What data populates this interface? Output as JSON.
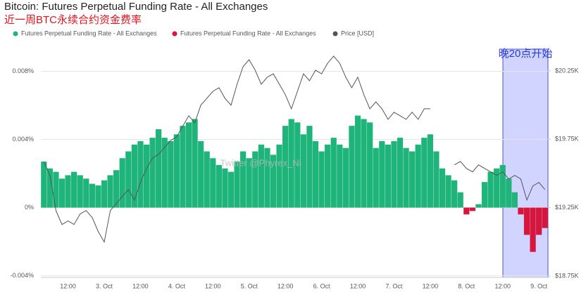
{
  "chart_data": {
    "type": "bar",
    "title": "Bitcoin: Futures Perpetual Funding Rate - All Exchanges",
    "subtitle": "近一周BTC永续合约资金费率",
    "annotation": "晚20点开始",
    "watermark": "Twitter @Phyrex_Ni",
    "categories": [
      null,
      null,
      null,
      null,
      "12:00",
      null,
      null,
      null,
      null,
      null,
      "3. Oct",
      null,
      null,
      null,
      null,
      null,
      "12:00",
      null,
      null,
      null,
      null,
      null,
      "4. Oct",
      null,
      null,
      null,
      null,
      null,
      "12:00",
      null,
      null,
      null,
      null,
      null,
      "5. Oct",
      null,
      null,
      null,
      null,
      null,
      "12:00",
      null,
      null,
      null,
      null,
      null,
      "6. Oct",
      null,
      null,
      null,
      null,
      null,
      "12:00",
      null,
      null,
      null,
      null,
      null,
      "7. Oct",
      null,
      null,
      null,
      null,
      null,
      "12:00",
      null,
      null,
      null,
      null,
      null,
      "8. Oct",
      null,
      null,
      null,
      null,
      null,
      "12:00",
      null,
      null,
      null,
      null,
      null,
      "9. Oct",
      null
    ],
    "series": [
      {
        "name": "Futures Perpetual Funding Rate - All Exchanges",
        "color": "#1fb57a",
        "values": [
          0.0027,
          0.0023,
          0.0021,
          0.0017,
          0.0019,
          0.0021,
          0.0019,
          0.0017,
          0.0014,
          0.0013,
          0.0016,
          0.0019,
          0.0022,
          0.0029,
          0.0033,
          0.0037,
          0.0039,
          0.0037,
          0.0041,
          0.0046,
          0.0041,
          0.0039,
          0.0043,
          0.0048,
          0.005,
          0.0052,
          0.0039,
          0.0033,
          0.0029,
          0.0025,
          0.0023,
          0.0021,
          0.0027,
          0.0033,
          0.0029,
          0.0033,
          0.0037,
          0.0035,
          0.0031,
          0.0037,
          0.0048,
          0.0052,
          0.005,
          0.0043,
          0.0048,
          0.0039,
          0.0033,
          0.0037,
          0.0041,
          0.0037,
          0.0035,
          0.0048,
          0.0054,
          0.0052,
          0.005,
          0.0035,
          0.0039,
          0.0037,
          0.0039,
          0.0041,
          0.0035,
          0.0033,
          0.0037,
          0.0041,
          0.0043,
          0.0033,
          0.0023,
          0.0019,
          0.0016,
          0.0009,
          null,
          null,
          0.0002,
          0.0015,
          0.0021,
          0.0023,
          0.0025,
          0.0017,
          0.0009,
          null,
          null,
          null,
          null,
          null
        ]
      },
      {
        "name": "Futures Perpetual Funding Rate - All Exchanges",
        "color": "#d6163c",
        "values": [
          null,
          null,
          null,
          null,
          null,
          null,
          null,
          null,
          null,
          null,
          null,
          null,
          null,
          null,
          null,
          null,
          null,
          null,
          null,
          null,
          null,
          null,
          null,
          null,
          null,
          null,
          null,
          null,
          null,
          null,
          null,
          null,
          null,
          null,
          null,
          null,
          null,
          null,
          null,
          null,
          null,
          null,
          null,
          null,
          null,
          null,
          null,
          null,
          null,
          null,
          null,
          null,
          null,
          null,
          null,
          null,
          null,
          null,
          null,
          null,
          null,
          null,
          null,
          null,
          null,
          null,
          null,
          null,
          null,
          null,
          -0.0004,
          -0.0002,
          null,
          null,
          null,
          null,
          null,
          null,
          null,
          -0.0004,
          -0.0016,
          -0.0026,
          -0.0016,
          -0.0012
        ]
      },
      {
        "name": "Price [USD]",
        "color": "#555555",
        "type": "line",
        "axis": "y2",
        "values": [
          19588,
          19486,
          19229,
          19127,
          19153,
          19127,
          19204,
          19229,
          19178,
          19076,
          18999,
          19229,
          19281,
          19332,
          19383,
          19306,
          19435,
          19537,
          19614,
          19640,
          19691,
          19742,
          19768,
          19845,
          19922,
          19871,
          19999,
          20050,
          20101,
          20127,
          20050,
          19999,
          20153,
          20281,
          20332,
          20255,
          20153,
          20204,
          20229,
          20153,
          20076,
          19973,
          20101,
          20229,
          20178,
          20255,
          20229,
          20306,
          20358,
          20306,
          20204,
          20127,
          20204,
          20076,
          19973,
          20024,
          19973,
          19896,
          19948,
          19922,
          19896,
          19948,
          19896,
          19973,
          19973,
          null,
          null,
          null,
          19563,
          19588,
          19537,
          19512,
          19563,
          19537,
          19512,
          19486,
          19512,
          19460,
          19486,
          19460,
          19306,
          19409,
          19435,
          19383
        ]
      }
    ],
    "ylim": [
      -0.0041,
      0.0093
    ],
    "yticks": [
      {
        "value": -0.004,
        "label": "-0.004%"
      },
      {
        "value": 0,
        "label": "0%"
      },
      {
        "value": 0.004,
        "label": "0.004%"
      },
      {
        "value": 0.008,
        "label": "0.008%"
      }
    ],
    "y2lim": [
      18740,
      20409
    ],
    "y2ticks": [
      {
        "value": 18750,
        "label": "$18.75K"
      },
      {
        "value": 19250,
        "label": "$19.25K"
      },
      {
        "value": 19750,
        "label": "$19.75K"
      },
      {
        "value": 20250,
        "label": "$20.25K"
      }
    ],
    "grid": true
  }
}
